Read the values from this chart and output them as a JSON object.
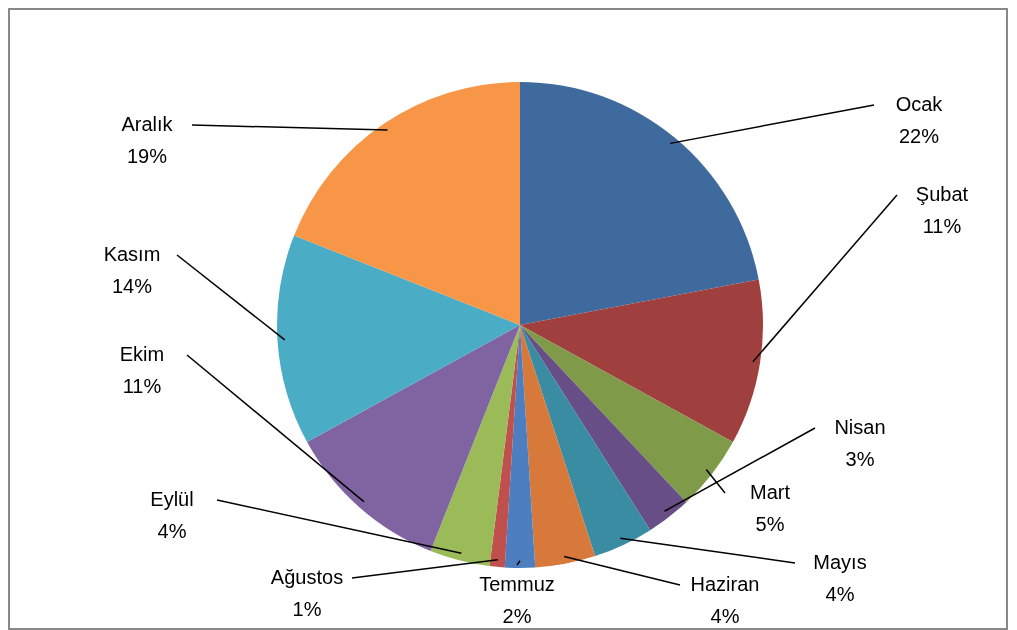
{
  "chart_data": {
    "type": "pie",
    "categories": [
      "Ocak",
      "Şubat",
      "Mart",
      "Nisan",
      "Mayıs",
      "Haziran",
      "Temmuz",
      "Ağustos",
      "Eylül",
      "Ekim",
      "Kasım",
      "Aralık"
    ],
    "values": [
      22,
      11,
      5,
      3,
      4,
      4,
      2,
      1,
      4,
      11,
      14,
      19
    ],
    "value_labels": [
      "22%",
      "11%",
      "5%",
      "3%",
      "4%",
      "4%",
      "2%",
      "1%",
      "4%",
      "11%",
      "14%",
      "19%"
    ],
    "colors": [
      "#3f6a9e",
      "#a0403e",
      "#7f9a48",
      "#674e87",
      "#3a8ca3",
      "#d6793a",
      "#4d7ec0",
      "#c0504d",
      "#9bbb59",
      "#8064a2",
      "#4bacc6",
      "#f79646"
    ],
    "legend": false
  }
}
